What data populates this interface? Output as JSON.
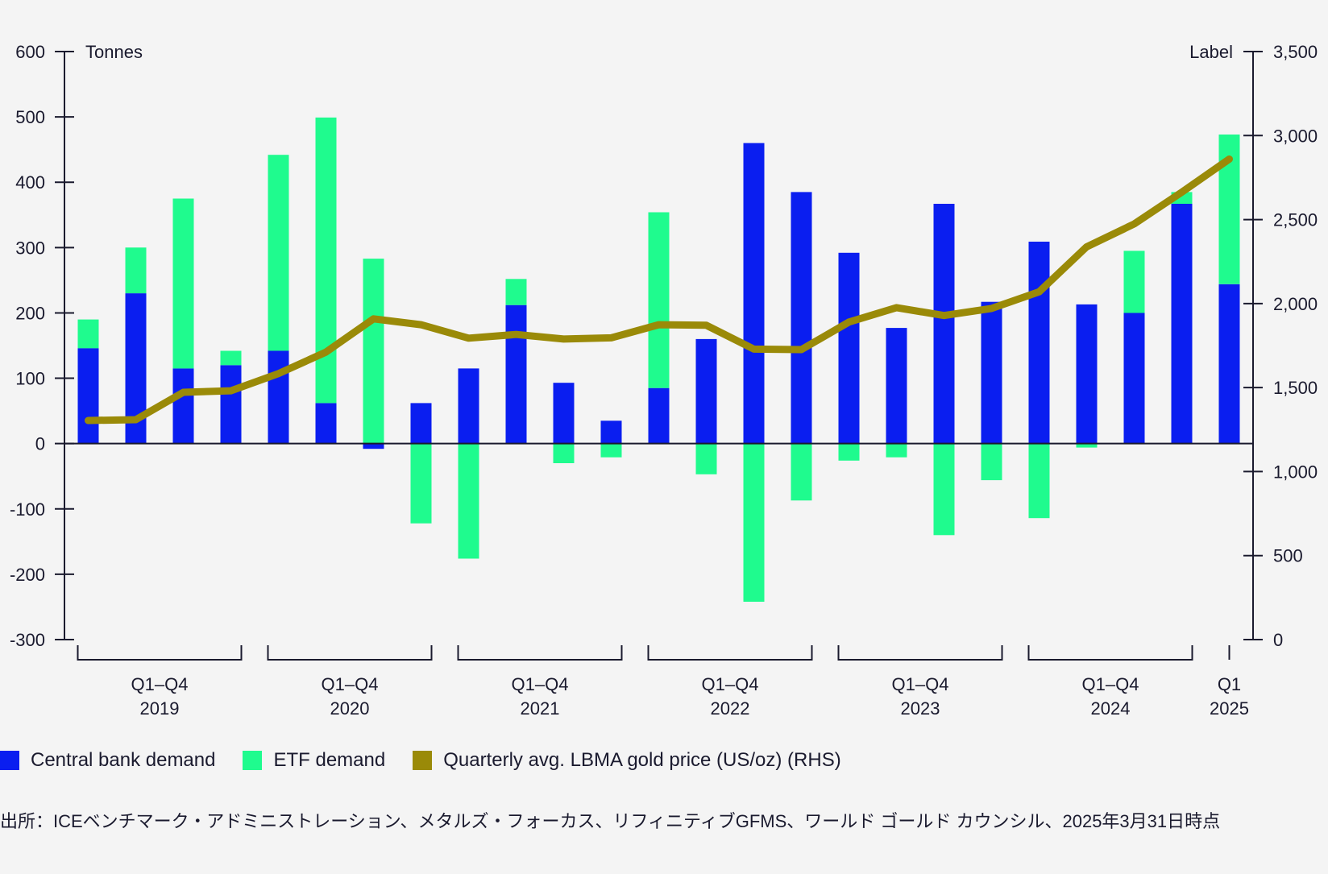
{
  "chart_data": {
    "type": "bar",
    "title": "",
    "stacked": true,
    "left_axis": {
      "label": "Tonnes",
      "ylim": [
        -300,
        600
      ],
      "ticks": [
        -300,
        -200,
        -100,
        0,
        100,
        200,
        300,
        400,
        500,
        600
      ],
      "tick_labels": [
        "-300",
        "-200",
        "-100",
        "0",
        "100",
        "200",
        "300",
        "400",
        "500",
        "600"
      ]
    },
    "right_axis": {
      "label": "Label",
      "ylim": [
        0,
        3500
      ],
      "ticks": [
        0,
        500,
        1000,
        1500,
        2000,
        2500,
        3000,
        3500
      ],
      "tick_labels": [
        "0",
        "500",
        "1,000",
        "1,500",
        "2,000",
        "2,500",
        "3,000",
        "3,500"
      ]
    },
    "categories": [
      "Q1 2019",
      "Q2 2019",
      "Q3 2019",
      "Q4 2019",
      "Q1 2020",
      "Q2 2020",
      "Q3 2020",
      "Q4 2020",
      "Q1 2021",
      "Q2 2021",
      "Q3 2021",
      "Q4 2021",
      "Q1 2022",
      "Q2 2022",
      "Q3 2022",
      "Q4 2022",
      "Q1 2023",
      "Q2 2023",
      "Q3 2023",
      "Q4 2023",
      "Q1 2024",
      "Q2 2024",
      "Q3 2024",
      "Q4 2024",
      "Q1 2025"
    ],
    "groups": [
      {
        "line1": "Q1–Q4",
        "line2": "2019",
        "start": 0,
        "end": 3
      },
      {
        "line1": "Q1–Q4",
        "line2": "2020",
        "start": 4,
        "end": 7
      },
      {
        "line1": "Q1–Q4",
        "line2": "2021",
        "start": 8,
        "end": 11
      },
      {
        "line1": "Q1–Q4",
        "line2": "2022",
        "start": 12,
        "end": 15
      },
      {
        "line1": "Q1–Q4",
        "line2": "2023",
        "start": 16,
        "end": 19
      },
      {
        "line1": "Q1–Q4",
        "line2": "2024",
        "start": 20,
        "end": 23
      },
      {
        "line1": "Q1",
        "line2": "2025",
        "start": 24,
        "end": 24
      }
    ],
    "series": [
      {
        "name": "Central bank demand",
        "type": "bar",
        "axis": "left",
        "color": "#0a1ef0",
        "values": [
          146,
          230,
          115,
          120,
          142,
          62,
          -8,
          62,
          115,
          212,
          93,
          35,
          85,
          160,
          460,
          385,
          292,
          177,
          367,
          217,
          309,
          213,
          200,
          367,
          244
        ]
      },
      {
        "name": "ETF demand",
        "type": "bar",
        "axis": "left",
        "color": "#1ffb8e",
        "values": [
          44,
          70,
          260,
          22,
          300,
          437,
          283,
          -122,
          -176,
          40,
          -30,
          -21,
          269,
          -47,
          -242,
          -87,
          -26,
          -21,
          -140,
          -56,
          -114,
          -6,
          95,
          18,
          229
        ]
      },
      {
        "name": "Quarterly avg. LBMA gold price (US/oz) (RHS)",
        "type": "line",
        "axis": "right",
        "color": "#9a8a08",
        "values": [
          1304,
          1309,
          1472,
          1481,
          1583,
          1711,
          1909,
          1874,
          1794,
          1816,
          1789,
          1796,
          1874,
          1871,
          1729,
          1726,
          1890,
          1976,
          1929,
          1971,
          2070,
          2338,
          2474,
          2663,
          2860
        ]
      }
    ]
  },
  "legend": [
    {
      "label": "Central bank demand",
      "color": "#0a1ef0"
    },
    {
      "label": "ETF demand",
      "color": "#1ffb8e"
    },
    {
      "label": "Quarterly avg. LBMA gold price (US/oz) (RHS)",
      "color": "#9a8a08"
    }
  ],
  "source": "出所：ICEベンチマーク・アドミニストレーション、メタルズ・フォーカス、リフィニティブGFMS、ワールド ゴールド カウンシル、2025年3月31日時点"
}
